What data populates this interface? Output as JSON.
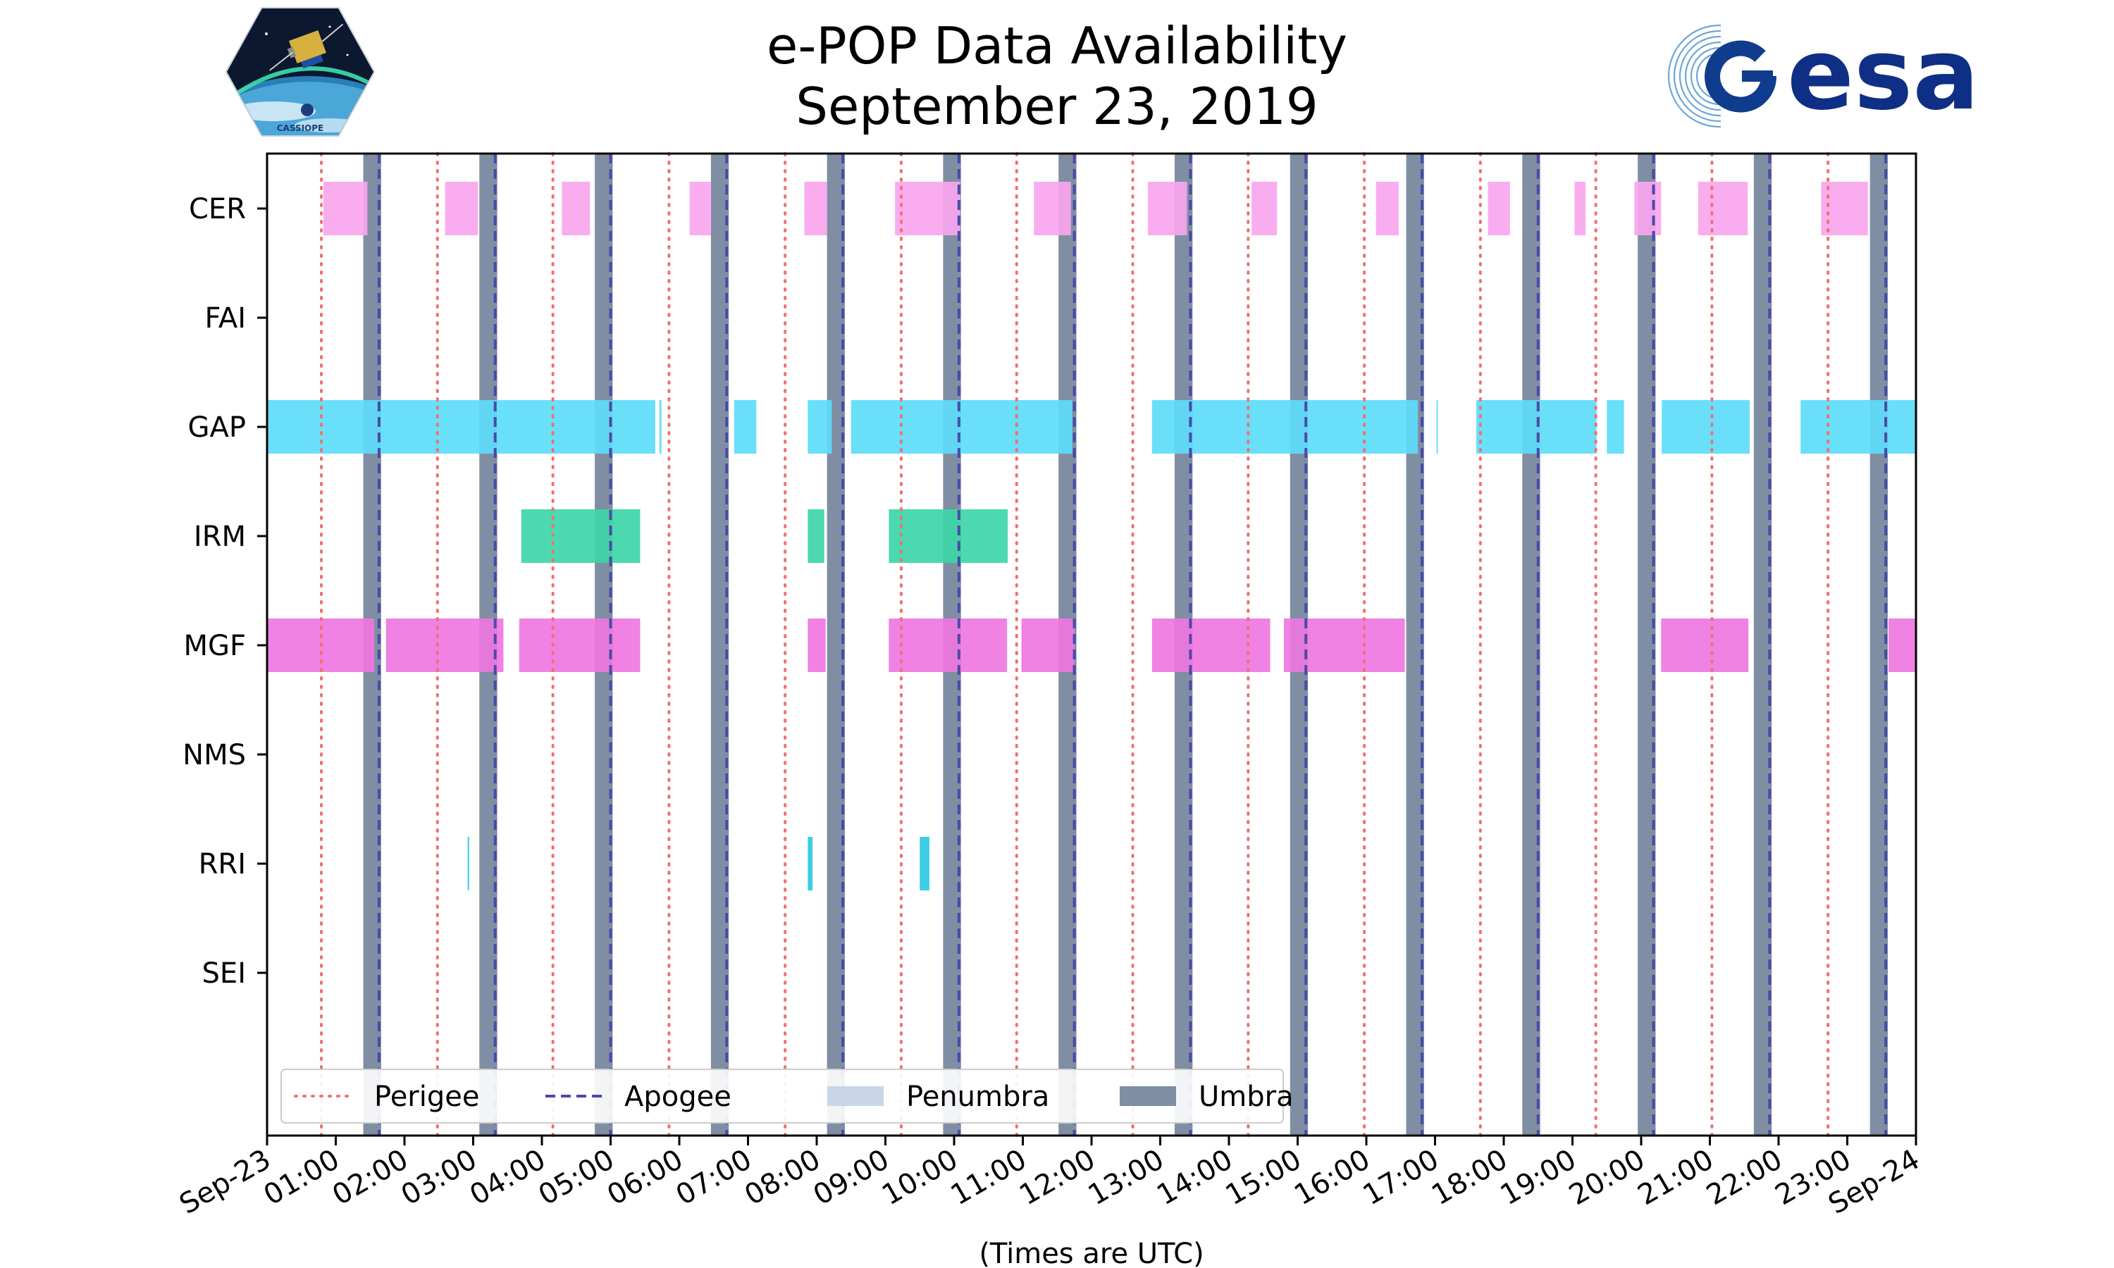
{
  "header": {
    "title_line1": "e-POP Data Availability",
    "title_line2": "September 23, 2019"
  },
  "logos": {
    "left": {
      "name": "cassiope-logo",
      "text": "CASSIOPE"
    },
    "right": {
      "name": "esa-logo",
      "text": "esa"
    }
  },
  "chart_data": {
    "type": "timeline",
    "title": "e-POP Data Availability\nSeptember 23, 2019",
    "xlabel": "(Times are UTC)",
    "xlim_hours": [
      0,
      24
    ],
    "x_tick_labels": [
      "Sep-23",
      "01:00",
      "02:00",
      "03:00",
      "04:00",
      "05:00",
      "06:00",
      "07:00",
      "08:00",
      "09:00",
      "10:00",
      "11:00",
      "12:00",
      "13:00",
      "14:00",
      "15:00",
      "16:00",
      "17:00",
      "18:00",
      "19:00",
      "20:00",
      "21:00",
      "22:00",
      "23:00",
      "Sep-24"
    ],
    "instruments": [
      "CER",
      "FAI",
      "GAP",
      "IRM",
      "MGF",
      "NMS",
      "RRI",
      "SEI"
    ],
    "colors": {
      "CER": "#f9a6ee",
      "FAI": "#a0a0a0",
      "GAP": "#5ddcf8",
      "IRM": "#3dd6a8",
      "MGF": "#ee77e0",
      "NMS": "#a0a0a0",
      "RRI": "#2cc9e2",
      "SEI": "#a0a0a0",
      "perigee": "#f07070",
      "apogee": "#4a4aa8",
      "penumbra": "#c8d6e8",
      "umbra": "#7f8ea3"
    },
    "availability_hours": {
      "CER": [
        [
          0.82,
          1.46
        ],
        [
          2.59,
          3.07
        ],
        [
          4.29,
          4.7
        ],
        [
          6.15,
          6.46
        ],
        [
          7.82,
          8.15
        ],
        [
          9.14,
          10.09
        ],
        [
          11.16,
          11.7
        ],
        [
          12.82,
          13.39
        ],
        [
          14.33,
          14.7
        ],
        [
          16.14,
          16.47
        ],
        [
          17.77,
          18.09
        ],
        [
          19.03,
          19.19
        ],
        [
          19.9,
          20.29
        ],
        [
          20.83,
          21.55
        ],
        [
          22.62,
          23.3
        ]
      ],
      "FAI": [],
      "GAP": [
        [
          0.0,
          5.65
        ],
        [
          5.71,
          5.74
        ],
        [
          6.8,
          7.12
        ],
        [
          7.87,
          8.22
        ],
        [
          8.5,
          11.72
        ],
        [
          12.88,
          16.75
        ],
        [
          17.02,
          17.04
        ],
        [
          17.6,
          19.35
        ],
        [
          19.5,
          19.75
        ],
        [
          20.3,
          21.58
        ],
        [
          22.32,
          24.0
        ]
      ],
      "IRM": [
        [
          3.7,
          5.43
        ],
        [
          7.87,
          8.11
        ],
        [
          9.05,
          10.78
        ]
      ],
      "MGF": [
        [
          0.0,
          1.56
        ],
        [
          1.73,
          3.44
        ],
        [
          3.67,
          5.43
        ],
        [
          7.87,
          8.13
        ],
        [
          9.05,
          10.77
        ],
        [
          10.98,
          11.75
        ],
        [
          12.88,
          14.6
        ],
        [
          14.8,
          16.56
        ],
        [
          20.29,
          21.56
        ],
        [
          23.6,
          24.0
        ]
      ],
      "NMS": [],
      "RRI": [
        [
          2.92,
          2.94
        ],
        [
          7.87,
          7.94
        ],
        [
          9.5,
          9.64
        ]
      ],
      "SEI": []
    },
    "perigee_hours": [
      0.79,
      2.48,
      4.16,
      5.85,
      7.54,
      9.23,
      10.91,
      12.6,
      14.28,
      15.97,
      17.66,
      19.34,
      21.03,
      22.72
    ],
    "apogee_hours": [
      1.63,
      3.32,
      5.0,
      6.69,
      8.38,
      10.07,
      11.75,
      13.44,
      15.12,
      16.81,
      18.5,
      20.18,
      21.87,
      23.56
    ],
    "umbra_hours": [
      [
        1.4,
        1.66
      ],
      [
        3.09,
        3.35
      ],
      [
        4.77,
        5.03
      ],
      [
        6.46,
        6.72
      ],
      [
        8.15,
        8.41
      ],
      [
        9.84,
        10.1
      ],
      [
        11.52,
        11.78
      ],
      [
        13.21,
        13.47
      ],
      [
        14.89,
        15.15
      ],
      [
        16.58,
        16.84
      ],
      [
        18.27,
        18.53
      ],
      [
        19.95,
        20.21
      ],
      [
        21.64,
        21.9
      ],
      [
        23.33,
        23.59
      ]
    ],
    "penumbra_hours": [],
    "legend": {
      "position": "lower-left",
      "entries": [
        "Perigee",
        "Apogee",
        "Penumbra",
        "Umbra"
      ]
    }
  }
}
